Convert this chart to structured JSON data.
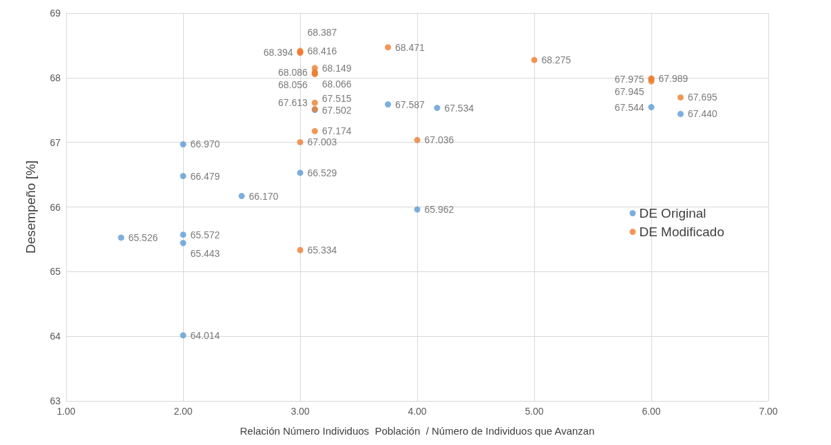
{
  "chart_data": {
    "type": "scatter",
    "xlabel": "Relación Número Individuos  Población  / Número de Individuos que Avanzan",
    "ylabel": "Desempeño [%]",
    "xlim": [
      1,
      7
    ],
    "xticks": [
      {
        "value": 1,
        "label": "1.00"
      },
      {
        "value": 2,
        "label": "2.00"
      },
      {
        "value": 3,
        "label": "3.00"
      },
      {
        "value": 4,
        "label": "4.00"
      },
      {
        "value": 5,
        "label": "5.00"
      },
      {
        "value": 6,
        "label": "6.00"
      },
      {
        "value": 7,
        "label": "7.00"
      }
    ],
    "ylim": [
      63,
      69
    ],
    "yticks": [
      63,
      64,
      65,
      66,
      67,
      68,
      69
    ],
    "grid": true,
    "legend": "right",
    "marker": "circle",
    "series": [
      {
        "name": "DE Original",
        "color": "#5b9bd5",
        "x": [
          1.47,
          2,
          2,
          2,
          2,
          2,
          2.5,
          3,
          3.125,
          3.75,
          4.17,
          4,
          6,
          6.25
        ],
        "values": [
          65.526,
          65.572,
          65.443,
          66.479,
          66.97,
          64.014,
          66.17,
          66.529,
          67.502,
          67.587,
          67.534,
          65.962,
          67.544,
          67.44
        ],
        "value_labels": [
          "65.526",
          "65.572",
          "65.443",
          "66.479",
          "66.970",
          "64.014",
          "66.170",
          "66.529",
          "67.502",
          "67.587",
          "67.534",
          "65.962",
          "67.544",
          "67.440"
        ]
      },
      {
        "name": "DE Modificado",
        "color": "#ed7d31",
        "x": [
          3,
          3,
          3,
          3.125,
          3.125,
          3.125,
          3.125,
          3.125,
          3.125,
          3.125,
          3,
          3,
          3.75,
          4,
          5,
          6,
          6,
          6,
          6.25
        ],
        "values": [
          68.416,
          68.394,
          68.387,
          68.149,
          68.086,
          68.066,
          68.056,
          67.613,
          67.515,
          67.174,
          67.003,
          65.334,
          68.471,
          67.036,
          68.275,
          67.989,
          67.975,
          67.945,
          67.695
        ],
        "value_labels": [
          "68.416",
          "68.394",
          "68.387",
          "68.149",
          "68.086",
          "68.066",
          "68.056",
          "67.613",
          "67.515",
          "67.174",
          "67.003",
          "65.334",
          "68.471",
          "67.036",
          "68.275",
          "67.989",
          "67.975",
          "67.945",
          "67.695"
        ]
      }
    ]
  }
}
